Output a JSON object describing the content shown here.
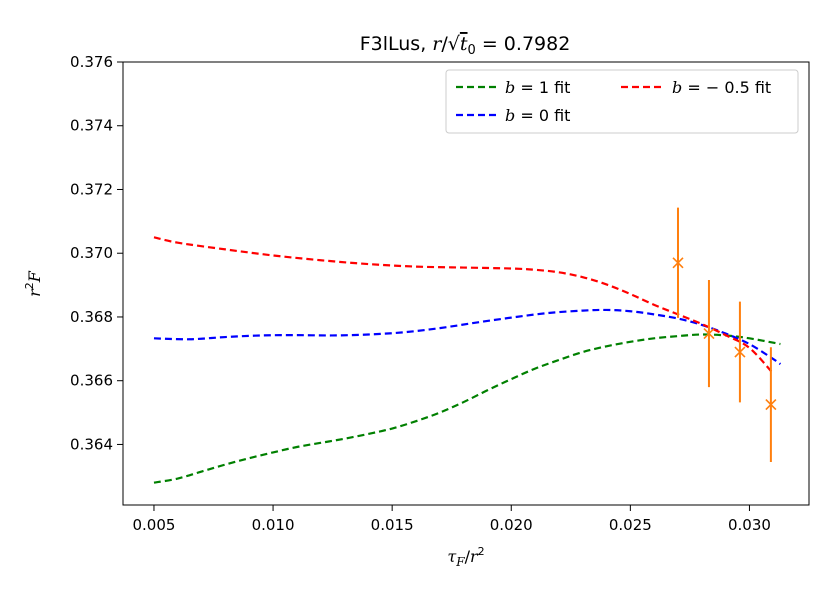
{
  "chart_data": {
    "type": "line",
    "title": "F3lLus, r/√t₀ = 0.7982",
    "title_parts": {
      "prefix": "F3lLus, ",
      "r": "r",
      "slash": "/",
      "sqrt": "√",
      "t": "t",
      "sub": "0",
      "equals": " = 0.7982"
    },
    "xlabel_parts": {
      "tau": "τ",
      "sub": "F",
      "slash": "/",
      "r": "r",
      "sup": "2"
    },
    "ylabel_parts": {
      "r": "r",
      "sup": "2",
      "F": "F"
    },
    "xlim": [
      0.0037,
      0.0325
    ],
    "ylim": [
      0.3621,
      0.376
    ],
    "x_ticks": [
      0.005,
      0.01,
      0.015,
      0.02,
      0.025,
      0.03
    ],
    "x_tick_labels": [
      "0.005",
      "0.010",
      "0.015",
      "0.020",
      "0.025",
      "0.030"
    ],
    "y_ticks": [
      0.364,
      0.366,
      0.368,
      0.37,
      0.372,
      0.374,
      0.376
    ],
    "y_tick_labels": [
      "0.364",
      "0.366",
      "0.368",
      "0.370",
      "0.372",
      "0.374",
      "0.376"
    ],
    "grid": false,
    "legend_position": "top-right",
    "series": [
      {
        "name": "b = 1 fit",
        "name_parts": {
          "var": "b",
          "rest": " = 1 fit"
        },
        "color": "#008000",
        "style": "dashed",
        "points": [
          [
            0.005,
            0.3628
          ],
          [
            0.006,
            0.36293
          ],
          [
            0.007,
            0.36315
          ],
          [
            0.008,
            0.36337
          ],
          [
            0.009,
            0.36357
          ],
          [
            0.01,
            0.36375
          ],
          [
            0.011,
            0.36392
          ],
          [
            0.012,
            0.36405
          ],
          [
            0.013,
            0.36418
          ],
          [
            0.014,
            0.36433
          ],
          [
            0.015,
            0.3645
          ],
          [
            0.016,
            0.36473
          ],
          [
            0.017,
            0.365
          ],
          [
            0.018,
            0.36533
          ],
          [
            0.019,
            0.3657
          ],
          [
            0.02,
            0.36605
          ],
          [
            0.021,
            0.36638
          ],
          [
            0.022,
            0.36665
          ],
          [
            0.023,
            0.3669
          ],
          [
            0.024,
            0.36708
          ],
          [
            0.025,
            0.36722
          ],
          [
            0.026,
            0.36733
          ],
          [
            0.027,
            0.3674
          ],
          [
            0.028,
            0.36745
          ],
          [
            0.029,
            0.36742
          ],
          [
            0.03,
            0.36733
          ],
          [
            0.0313,
            0.36715
          ]
        ]
      },
      {
        "name": "b = 0 fit",
        "name_parts": {
          "var": "b",
          "rest": " = 0 fit"
        },
        "color": "#0000ff",
        "style": "dashed",
        "points": [
          [
            0.005,
            0.36733
          ],
          [
            0.0065,
            0.3673
          ],
          [
            0.008,
            0.36737
          ],
          [
            0.0095,
            0.36742
          ],
          [
            0.011,
            0.36743
          ],
          [
            0.0125,
            0.36742
          ],
          [
            0.014,
            0.36745
          ],
          [
            0.0155,
            0.36752
          ],
          [
            0.017,
            0.36765
          ],
          [
            0.0185,
            0.36782
          ],
          [
            0.02,
            0.36798
          ],
          [
            0.0215,
            0.36812
          ],
          [
            0.023,
            0.3682
          ],
          [
            0.024,
            0.36822
          ],
          [
            0.025,
            0.36818
          ],
          [
            0.026,
            0.36808
          ],
          [
            0.027,
            0.36795
          ],
          [
            0.028,
            0.36775
          ],
          [
            0.029,
            0.36748
          ],
          [
            0.03,
            0.36715
          ],
          [
            0.031,
            0.36668
          ],
          [
            0.0313,
            0.36652
          ]
        ]
      },
      {
        "name": "b = −0.5 fit",
        "name_parts": {
          "var": "b",
          "rest": " = − 0.5 fit"
        },
        "color": "#ff0000",
        "style": "dashed",
        "points": [
          [
            0.005,
            0.3705
          ],
          [
            0.006,
            0.37033
          ],
          [
            0.008,
            0.37012
          ],
          [
            0.01,
            0.36993
          ],
          [
            0.012,
            0.36978
          ],
          [
            0.014,
            0.36966
          ],
          [
            0.016,
            0.36958
          ],
          [
            0.018,
            0.36955
          ],
          [
            0.02,
            0.36952
          ],
          [
            0.021,
            0.36948
          ],
          [
            0.022,
            0.3694
          ],
          [
            0.023,
            0.36925
          ],
          [
            0.024,
            0.36902
          ],
          [
            0.025,
            0.36872
          ],
          [
            0.026,
            0.36838
          ],
          [
            0.027,
            0.36808
          ],
          [
            0.028,
            0.36778
          ],
          [
            0.029,
            0.36743
          ],
          [
            0.03,
            0.36703
          ],
          [
            0.031,
            0.36622
          ]
        ]
      }
    ],
    "error_points": {
      "color": "#ff7f0e",
      "marker": "x",
      "points": [
        {
          "x": 0.027,
          "y": 0.3697,
          "yerr": 0.00173
        },
        {
          "x": 0.0283,
          "y": 0.36748,
          "yerr": 0.00168
        },
        {
          "x": 0.0296,
          "y": 0.3669,
          "yerr": 0.00158
        },
        {
          "x": 0.0309,
          "y": 0.36525,
          "yerr": 0.0018
        }
      ]
    }
  }
}
